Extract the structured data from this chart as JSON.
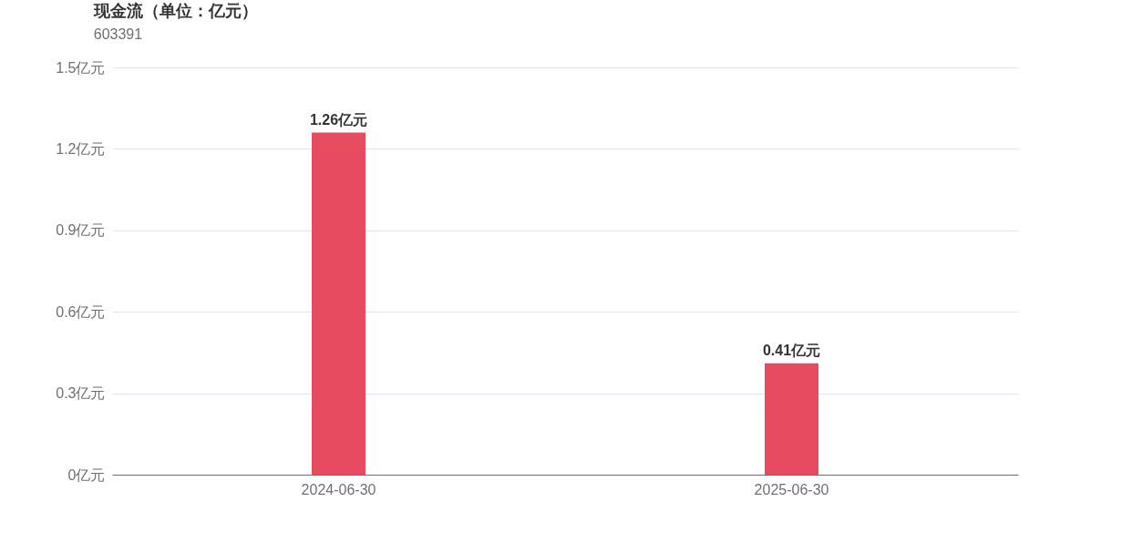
{
  "chart_data": {
    "type": "bar",
    "title": "现金流（单位：亿元）",
    "subtitle": "603391",
    "categories": [
      "2024-06-30",
      "2025-06-30"
    ],
    "values": [
      1.26,
      0.41
    ],
    "color": "#e64b5f",
    "value_labels": [
      "1.26亿元",
      "0.41亿元"
    ],
    "ylim": [
      0,
      1.5
    ],
    "yticks": [
      {
        "value": 0,
        "label": "0亿元"
      },
      {
        "value": 0.3,
        "label": "0.3亿元"
      },
      {
        "value": 0.6,
        "label": "0.6亿元"
      },
      {
        "value": 0.9,
        "label": "0.9亿元"
      },
      {
        "value": 1.2,
        "label": "1.2亿元"
      },
      {
        "value": 1.5,
        "label": "1.5亿元"
      }
    ],
    "grid": "y"
  }
}
